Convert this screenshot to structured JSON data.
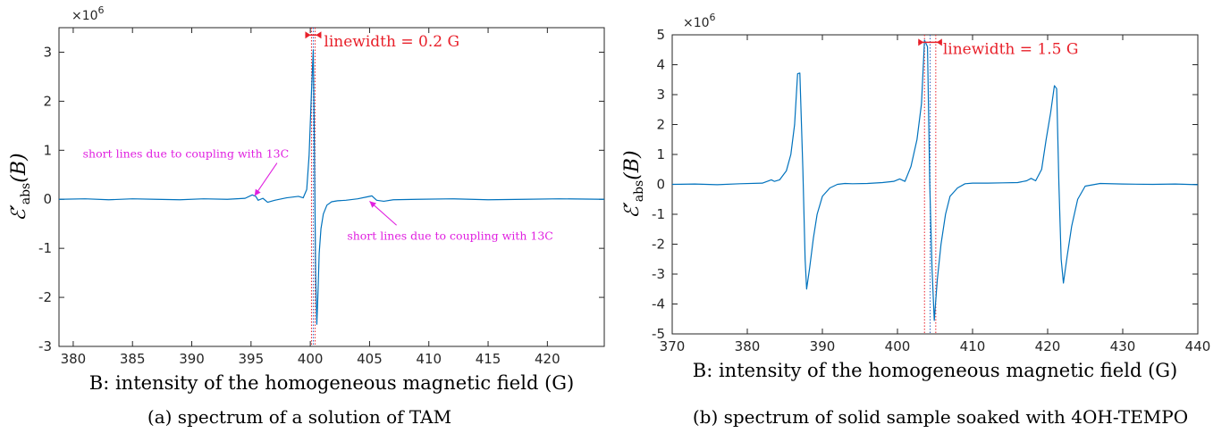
{
  "chart_data": [
    {
      "type": "line",
      "caption": "(a) spectrum of a solution of TAM",
      "xlabel": "B: intensity of the homogeneous magnetic field (G)",
      "ylabel": "ℰ′abs(B)",
      "ylabel_main": "ℰ′",
      "ylabel_sub": "abs",
      "ylabel_tail": "(B)",
      "y_exponent": "×10",
      "y_exponent_power": "6",
      "xlim": [
        378.8,
        424.8
      ],
      "ylim": [
        -3,
        3.5
      ],
      "xticks": [
        380,
        385,
        390,
        395,
        400,
        405,
        410,
        415,
        420
      ],
      "yticks": [
        -3,
        -2,
        -1,
        0,
        1,
        2,
        3
      ],
      "ytick_labels": [
        "-3",
        "-2",
        "-1",
        "0",
        "1",
        "2",
        "3"
      ],
      "grid": false,
      "line_color": "#0072bd",
      "series": [
        {
          "x": [
            378.8,
            381,
            383,
            385,
            387,
            389,
            391,
            393,
            394.5,
            395.1,
            395.4,
            395.6,
            396.0,
            396.4,
            397,
            398,
            399,
            399.4,
            399.7,
            399.9,
            400.1,
            400.25,
            400.35,
            400.45,
            400.55,
            400.65,
            400.75,
            400.9,
            401.1,
            401.4,
            401.8,
            402.3,
            403,
            404,
            404.8,
            405.2,
            405.6,
            406.2,
            407,
            409,
            412,
            415,
            418,
            421,
            424.8
          ],
          "y": [
            0,
            0.01,
            -0.01,
            0.01,
            0,
            -0.01,
            0.01,
            0,
            0.02,
            0.09,
            0.06,
            -0.02,
            0.02,
            -0.06,
            -0.02,
            0.03,
            0.06,
            0.03,
            0.2,
            0.9,
            2.2,
            3.05,
            1.0,
            -1.5,
            -2.55,
            -1.9,
            -1.1,
            -0.6,
            -0.3,
            -0.12,
            -0.05,
            -0.03,
            -0.02,
            0.01,
            0.05,
            0.07,
            -0.02,
            -0.04,
            -0.01,
            0,
            0.01,
            -0.01,
            0,
            0.01,
            0
          ]
        }
      ],
      "linewidth_marker": {
        "label": "linewidth = 0.2 G",
        "x1": 400.1,
        "x2": 400.4,
        "center": 400.25,
        "y": 3.35
      },
      "annotations": [
        {
          "text": "short lines due to coupling with 13C",
          "target_x": 395.3,
          "target_y": 0.07,
          "text_x": 389.5,
          "text_y": 0.85
        },
        {
          "text": "short lines due to coupling with 13C",
          "target_x": 405.0,
          "target_y": -0.04,
          "text_x": 411.8,
          "text_y": -0.82
        }
      ]
    },
    {
      "type": "line",
      "caption": "(b) spectrum of solid sample soaked with 4OH-TEMPO",
      "xlabel": "B: intensity of the homogeneous magnetic field (G)",
      "ylabel": "ℰ′abs(B)",
      "ylabel_main": "ℰ′",
      "ylabel_sub": "abs",
      "ylabel_tail": "(B)",
      "y_exponent": "×10",
      "y_exponent_power": "6",
      "xlim": [
        370,
        440
      ],
      "ylim": [
        -5,
        5
      ],
      "xticks": [
        370,
        380,
        390,
        400,
        410,
        420,
        430,
        440
      ],
      "yticks": [
        -5,
        -4,
        -3,
        -2,
        -1,
        0,
        1,
        2,
        3,
        4,
        5
      ],
      "ytick_labels": [
        "-5",
        "-4",
        "-3",
        "-2",
        "-1",
        "0",
        "1",
        "2",
        "3",
        "4",
        "5"
      ],
      "grid": false,
      "line_color": "#0072bd",
      "series": [
        {
          "x": [
            370,
            373,
            376,
            379,
            382,
            383.2,
            383.6,
            384.3,
            385.2,
            385.8,
            386.3,
            386.7,
            387.0,
            387.4,
            387.7,
            387.9,
            388.3,
            388.8,
            389.3,
            390,
            391,
            392,
            393,
            394,
            396,
            398,
            399.5,
            400.3,
            401,
            401.8,
            402.6,
            403.2,
            403.6,
            404.0,
            404.3,
            404.6,
            404.9,
            405.3,
            405.8,
            406.4,
            407,
            408,
            409,
            410,
            412,
            414,
            416,
            417.2,
            417.8,
            418.4,
            419.2,
            419.8,
            420.4,
            420.9,
            421.2,
            421.5,
            421.8,
            422.1,
            422.6,
            423.2,
            424,
            425,
            427,
            430,
            434,
            437,
            440
          ],
          "y": [
            0,
            0.01,
            -0.01,
            0.02,
            0.04,
            0.15,
            0.1,
            0.15,
            0.45,
            1.0,
            2.0,
            3.7,
            3.72,
            0.5,
            -2.5,
            -3.5,
            -2.8,
            -1.8,
            -1.0,
            -0.4,
            -0.12,
            0,
            0.03,
            0.02,
            0.03,
            0.06,
            0.1,
            0.18,
            0.1,
            0.6,
            1.5,
            2.7,
            4.82,
            4.6,
            0,
            -2.8,
            -4.55,
            -3.2,
            -2.0,
            -1.0,
            -0.4,
            -0.12,
            0.02,
            0.04,
            0.04,
            0.05,
            0.06,
            0.12,
            0.2,
            0.12,
            0.5,
            1.5,
            2.4,
            3.3,
            3.2,
            0.0,
            -2.5,
            -3.3,
            -2.4,
            -1.4,
            -0.5,
            -0.06,
            0.03,
            0.01,
            0,
            0.01,
            -0.01
          ]
        }
      ],
      "linewidth_marker": {
        "label": "linewidth = 1.5 G",
        "x1": 403.6,
        "x2": 405.1,
        "center": 404.35,
        "y": 4.75
      }
    }
  ]
}
